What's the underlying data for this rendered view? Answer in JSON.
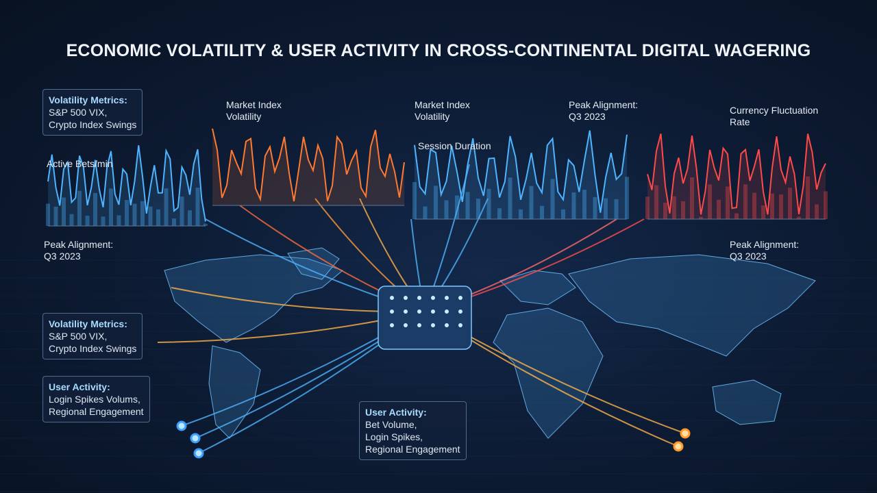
{
  "title": "ECONOMIC VOLATILITY & USER ACTIVITY IN CROSS-CONTINENTAL DIGITAL WAGERING",
  "chart_labels": [
    {
      "lines": [
        "Active Bets/min"
      ]
    },
    {
      "lines": [
        "Market Index",
        "Volatility"
      ]
    },
    {
      "lines": [
        "Market Index",
        "Volatility"
      ]
    },
    {
      "lines": [
        "Session Duration"
      ]
    },
    {
      "lines": [
        "Peak Alignment:",
        "Q3 2023"
      ]
    },
    {
      "lines": [
        "Currency Fluctuation",
        "Rate"
      ]
    },
    {
      "lines": [
        "Peak Alignment:",
        "Q3 2023"
      ]
    },
    {
      "lines": [
        "Peak Alignment:",
        "Q3 2023"
      ]
    }
  ],
  "callouts": [
    {
      "heading": "Volatility Metrics:",
      "lines": [
        "S&P 500 VIX,",
        "Crypto Index Swings"
      ]
    },
    {
      "heading": "Volatility Metrics:",
      "lines": [
        "S&P 500 VIX,",
        "Crypto Index Swings"
      ]
    },
    {
      "heading": "User Activity:",
      "lines": [
        "Login Spikes Volums,",
        "Regional Engagement"
      ]
    },
    {
      "heading": "User Activity:",
      "lines": [
        "Bet Volume,",
        "Login Spikes,",
        "Regional Engagement"
      ]
    }
  ]
}
